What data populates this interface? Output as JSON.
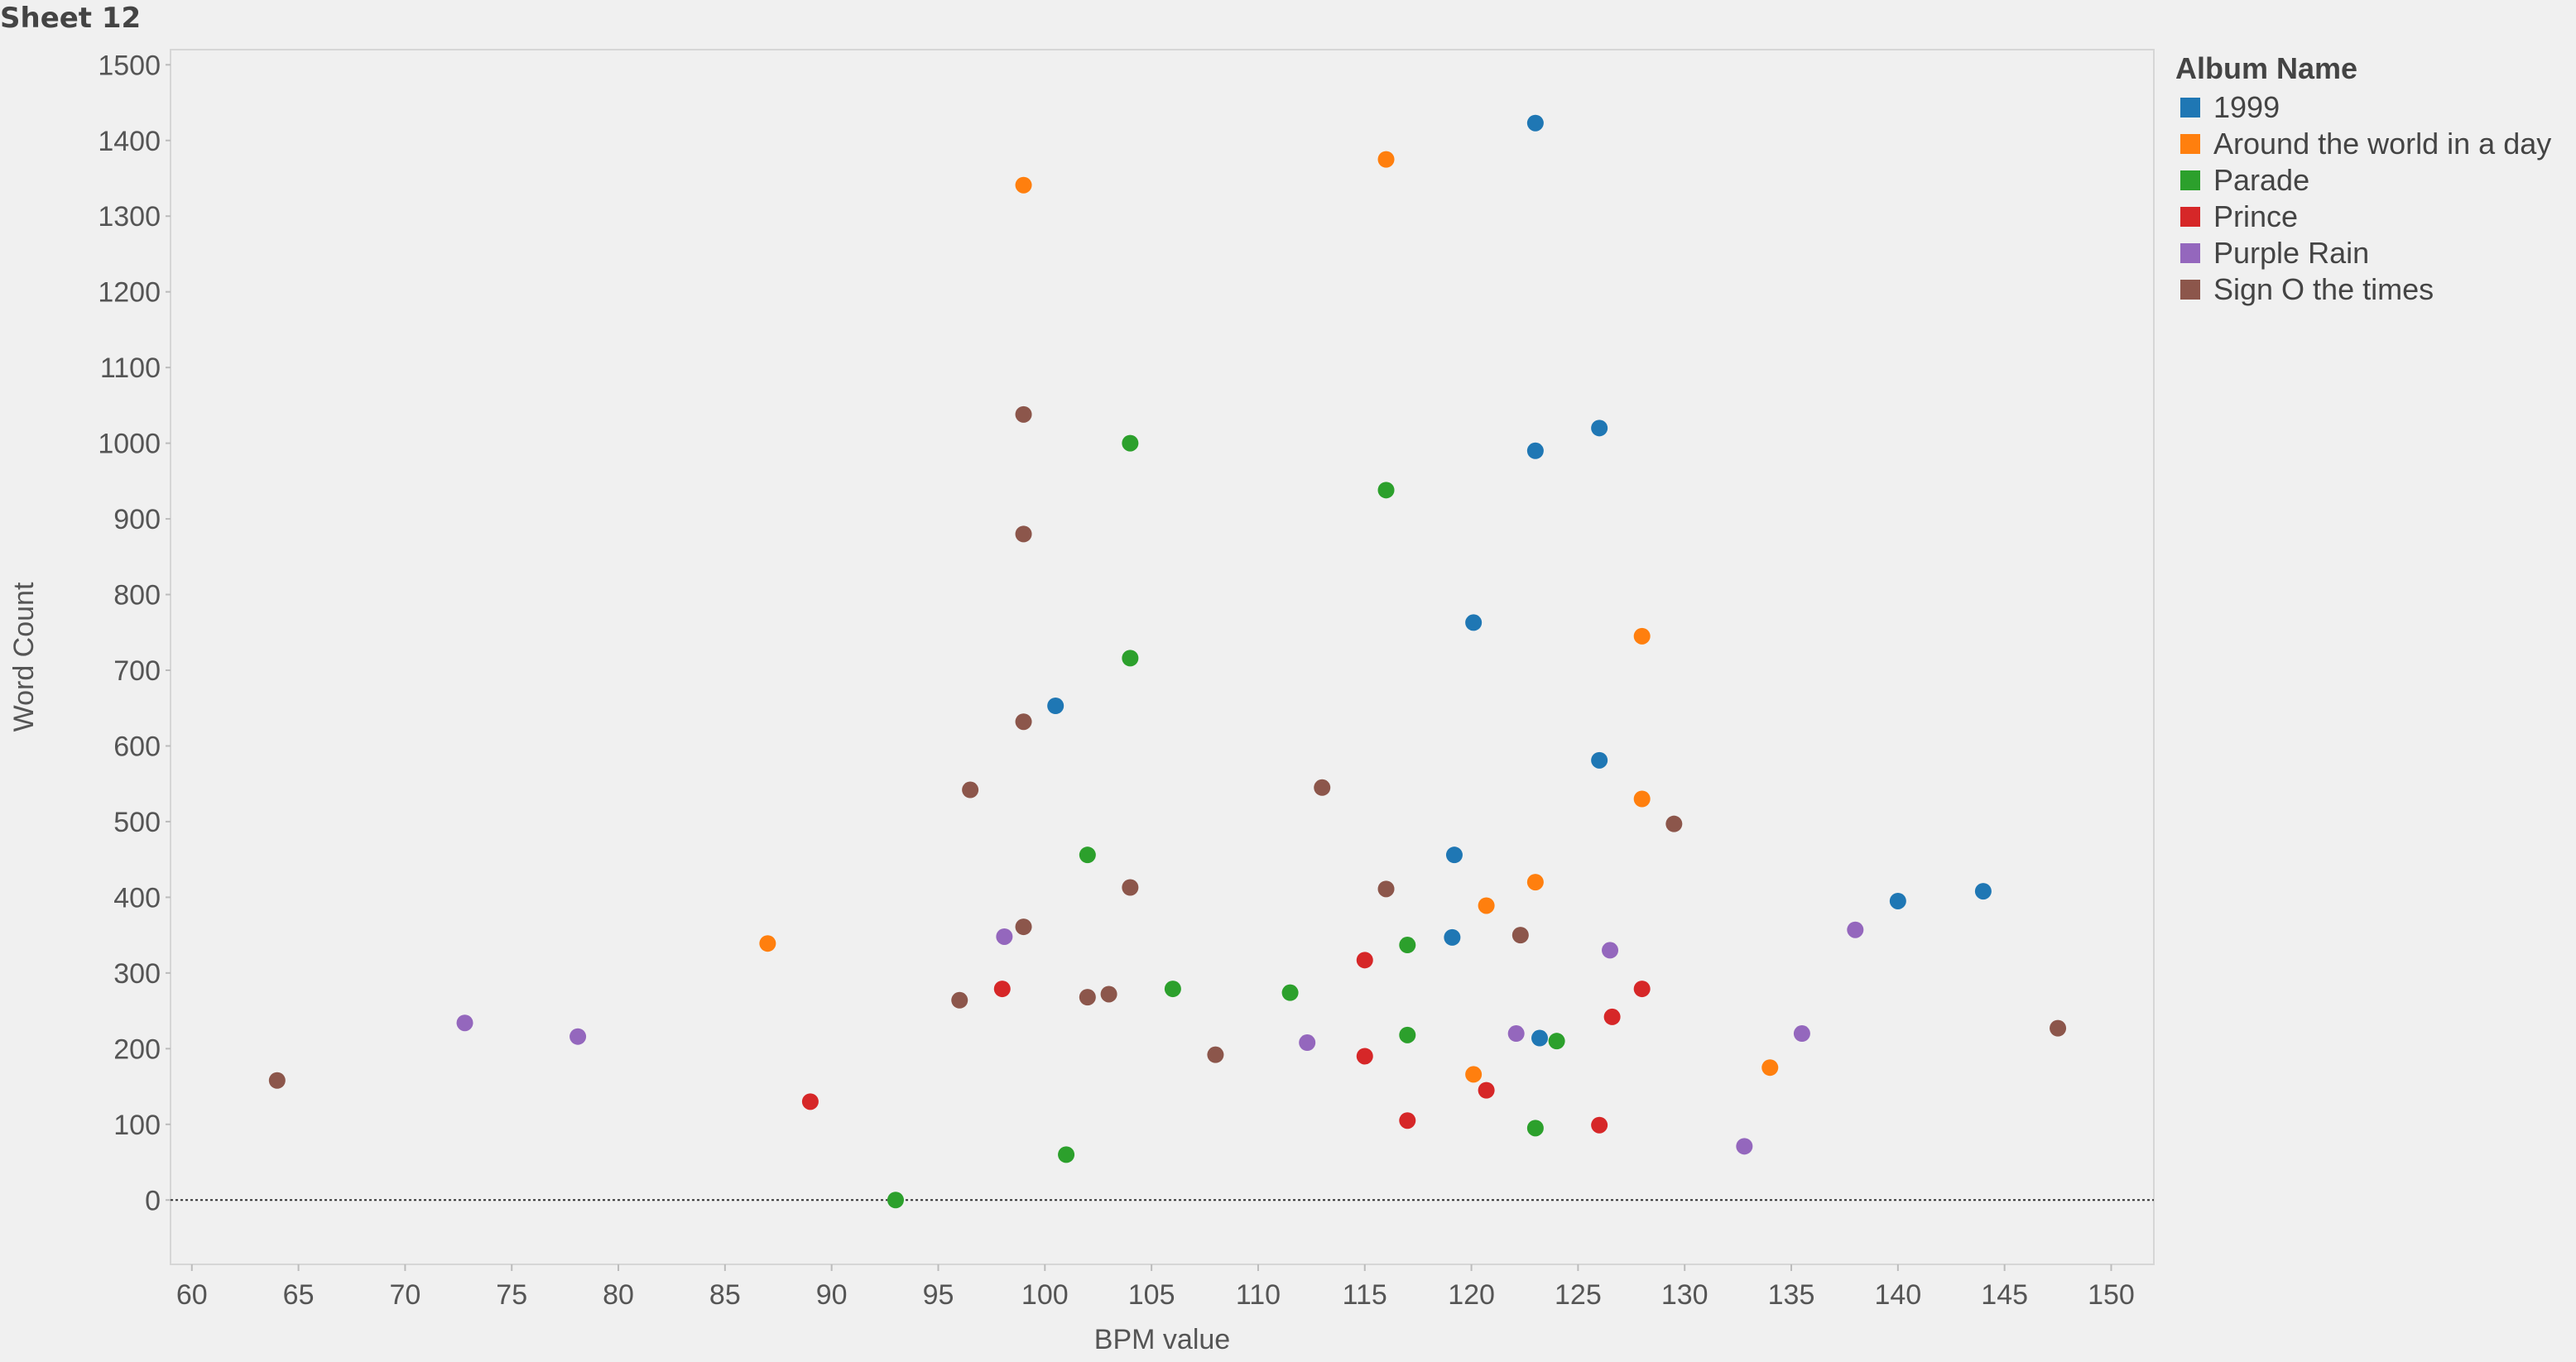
{
  "sheet_title": "Sheet 12",
  "chart_data": {
    "type": "scatter",
    "xlabel": "BPM value",
    "ylabel": "Word Count",
    "xlim": [
      59,
      152
    ],
    "ylim": [
      -85,
      1520
    ],
    "x_ticks": [
      60,
      65,
      70,
      75,
      80,
      85,
      90,
      95,
      100,
      105,
      110,
      115,
      120,
      125,
      130,
      135,
      140,
      145,
      150
    ],
    "y_ticks": [
      0,
      100,
      200,
      300,
      400,
      500,
      600,
      700,
      800,
      900,
      1000,
      1100,
      1200,
      1300,
      1400,
      1500
    ],
    "grid": false,
    "zero_line": true,
    "legend": {
      "title": "Album Name",
      "placement": "right"
    },
    "series": [
      {
        "name": "1999",
        "color": "#1f77b4",
        "points": [
          [
            100.5,
            653
          ],
          [
            119.2,
            456
          ],
          [
            119.1,
            347
          ],
          [
            120.1,
            763
          ],
          [
            123,
            1423
          ],
          [
            123,
            990
          ],
          [
            123.2,
            214
          ],
          [
            126,
            1020
          ],
          [
            126,
            581
          ],
          [
            140,
            395
          ],
          [
            144,
            408
          ]
        ]
      },
      {
        "name": "Around the world in a day",
        "color": "#ff7f0e",
        "points": [
          [
            87,
            339
          ],
          [
            99,
            1341
          ],
          [
            116,
            1375
          ],
          [
            120.1,
            166
          ],
          [
            120.7,
            389
          ],
          [
            123,
            420
          ],
          [
            128,
            745
          ],
          [
            128,
            530
          ],
          [
            134,
            175
          ]
        ]
      },
      {
        "name": "Parade",
        "color": "#2ca02c",
        "points": [
          [
            93,
            0
          ],
          [
            101,
            60
          ],
          [
            102,
            456
          ],
          [
            104,
            1000
          ],
          [
            104,
            716
          ],
          [
            106,
            279
          ],
          [
            111.5,
            274
          ],
          [
            116,
            938
          ],
          [
            117,
            337
          ],
          [
            117,
            218
          ],
          [
            123,
            95
          ],
          [
            124,
            210
          ]
        ]
      },
      {
        "name": "Prince",
        "color": "#d62728",
        "points": [
          [
            89,
            130
          ],
          [
            98,
            279
          ],
          [
            115,
            317
          ],
          [
            115,
            190
          ],
          [
            117,
            105
          ],
          [
            120.7,
            145
          ],
          [
            126,
            99
          ],
          [
            126.6,
            242
          ],
          [
            128,
            279
          ]
        ]
      },
      {
        "name": "Purple Rain",
        "color": "#9467bd",
        "points": [
          [
            72.8,
            234
          ],
          [
            78.1,
            216
          ],
          [
            98.1,
            348
          ],
          [
            112.3,
            208
          ],
          [
            122.1,
            220
          ],
          [
            126.5,
            330
          ],
          [
            132.8,
            71
          ],
          [
            135.5,
            220
          ],
          [
            138,
            357
          ]
        ]
      },
      {
        "name": "Sign O the times",
        "color": "#8c564b",
        "points": [
          [
            64,
            158
          ],
          [
            96,
            264
          ],
          [
            96.5,
            542
          ],
          [
            99,
            1038
          ],
          [
            99,
            880
          ],
          [
            99,
            632
          ],
          [
            99,
            361
          ],
          [
            102,
            268
          ],
          [
            103,
            272
          ],
          [
            104,
            413
          ],
          [
            108,
            192
          ],
          [
            113,
            545
          ],
          [
            116,
            411
          ],
          [
            122.3,
            350
          ],
          [
            129.5,
            497
          ],
          [
            147.5,
            227
          ]
        ]
      }
    ]
  }
}
